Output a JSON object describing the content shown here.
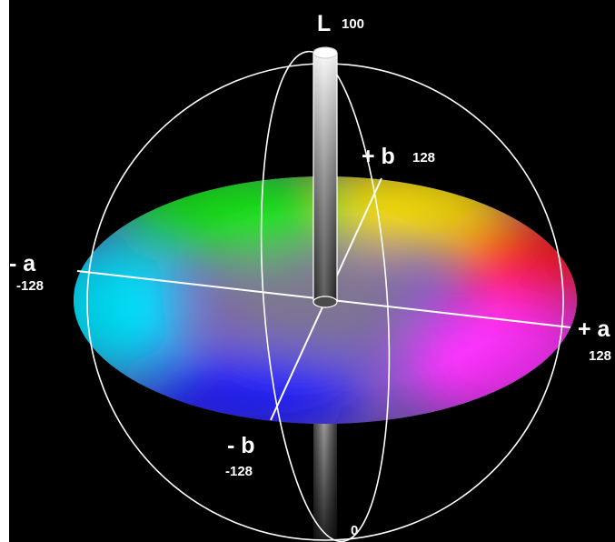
{
  "diagram": {
    "labels": {
      "L_axis": "L",
      "L_max": "100",
      "L_min": "0",
      "plus_a": "+ a",
      "plus_a_value": "128",
      "minus_a": "- a",
      "minus_a_value": "-128",
      "plus_b": "+ b",
      "plus_b_value": "128",
      "minus_b": "- b",
      "minus_b_value": "-128"
    },
    "colors": {
      "background": "#000000",
      "sphere_outline": "#ffffff",
      "red": "#ff1a1a",
      "yellow": "#ffe600",
      "green": "#19e619",
      "cyan": "#00e5ff",
      "blue": "#1a1aff",
      "magenta": "#ff33ff"
    }
  }
}
